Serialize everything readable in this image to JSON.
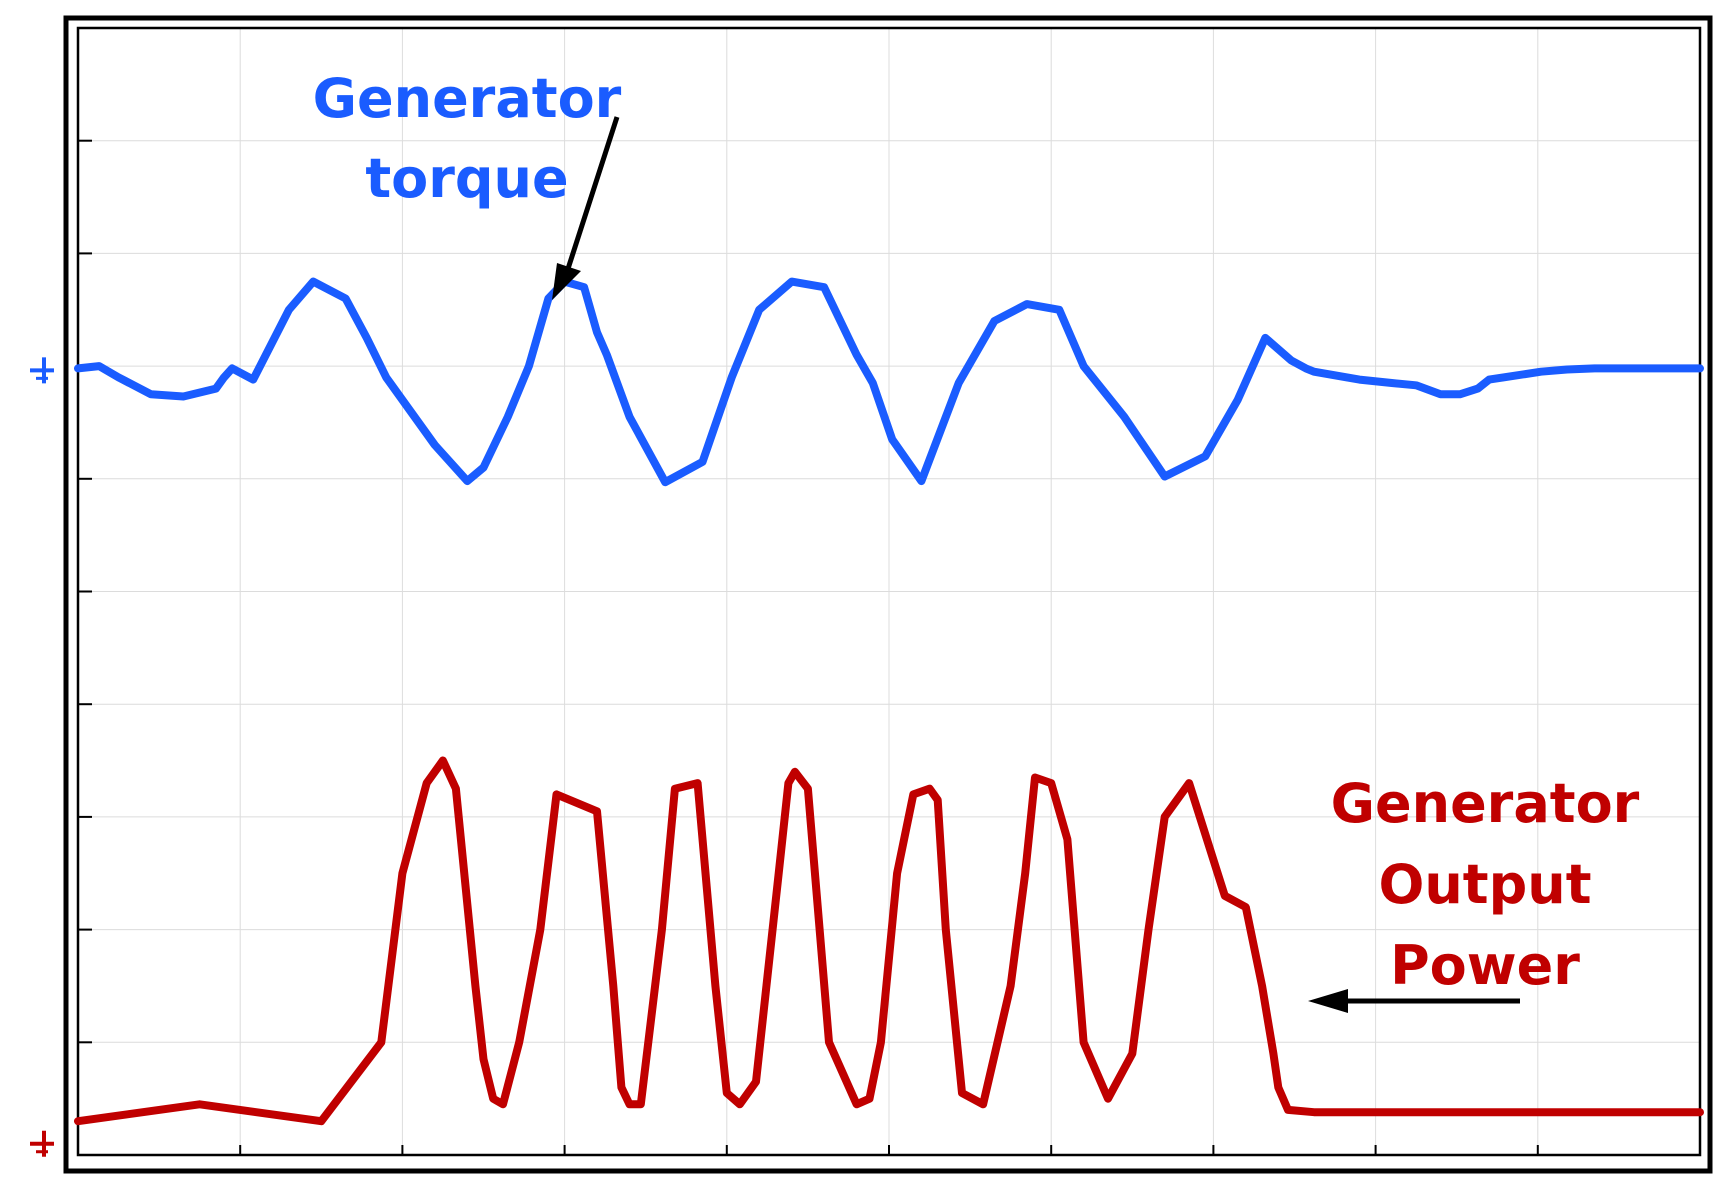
{
  "chart_data": {
    "type": "line",
    "title": "",
    "xlabel": "",
    "ylabel": "",
    "xlim": [
      0,
      10
    ],
    "ylim": [
      0,
      10
    ],
    "grid": true,
    "x_tick_count": 11,
    "y_tick_count": 11,
    "series": [
      {
        "name": "Generator torque",
        "color": "#1a5cff",
        "label_lines": [
          "Generator",
          "torque"
        ],
        "x": [
          0,
          0.13,
          0.25,
          0.45,
          0.65,
          0.85,
          0.9,
          0.95,
          1.08,
          1.3,
          1.45,
          1.65,
          1.78,
          1.9,
          2.2,
          2.4,
          2.5,
          2.65,
          2.78,
          2.9,
          3.0,
          3.12,
          3.2,
          3.26,
          3.4,
          3.62,
          3.85,
          4.03,
          4.2,
          4.4,
          4.6,
          4.8,
          4.9,
          5.02,
          5.2,
          5.43,
          5.65,
          5.85,
          6.05,
          6.2,
          6.45,
          6.7,
          6.95,
          7.15,
          7.32,
          7.48,
          7.57,
          7.62,
          7.9,
          8.1,
          8.25,
          8.4,
          8.52,
          8.63,
          8.7,
          9.02,
          9.18,
          9.35,
          9.55,
          9.65,
          9.8,
          9.9,
          10.0
        ],
        "y": [
          6.98,
          7.0,
          6.9,
          6.75,
          6.73,
          6.8,
          6.9,
          6.98,
          6.88,
          7.5,
          7.75,
          7.6,
          7.25,
          6.9,
          6.3,
          5.98,
          6.1,
          6.55,
          7.0,
          7.6,
          7.75,
          7.7,
          7.3,
          7.1,
          6.55,
          5.97,
          6.15,
          6.9,
          7.5,
          7.75,
          7.7,
          7.1,
          6.85,
          6.35,
          5.98,
          6.85,
          7.4,
          7.55,
          7.5,
          7.0,
          6.55,
          6.02,
          6.2,
          6.7,
          7.25,
          7.05,
          6.98,
          6.95,
          6.88,
          6.85,
          6.83,
          6.75,
          6.75,
          6.8,
          6.88,
          6.95,
          6.97,
          6.98,
          6.98,
          6.98,
          6.98,
          6.98,
          6.98
        ]
      },
      {
        "name": "Generator Output Power",
        "color": "#c00000",
        "label_lines": [
          "Generator",
          "Output",
          "Power"
        ],
        "x": [
          0,
          0.75,
          1.5,
          1.87,
          2.0,
          2.15,
          2.25,
          2.33,
          2.45,
          2.5,
          2.56,
          2.62,
          2.72,
          2.85,
          2.95,
          3.2,
          3.3,
          3.35,
          3.4,
          3.47,
          3.6,
          3.68,
          3.82,
          3.93,
          4.0,
          4.08,
          4.18,
          4.32,
          4.38,
          4.42,
          4.5,
          4.63,
          4.8,
          4.88,
          4.95,
          5.05,
          5.15,
          5.25,
          5.3,
          5.35,
          5.45,
          5.58,
          5.75,
          5.84,
          5.9,
          6.0,
          6.1,
          6.2,
          6.35,
          6.5,
          6.6,
          6.7,
          6.85,
          7.07,
          7.2,
          7.3,
          7.37,
          7.4,
          7.46,
          7.62,
          7.75,
          7.85,
          7.92,
          8.0,
          8.1,
          8.25,
          8.35,
          8.5,
          9.0,
          10.0
        ],
        "y": [
          0.3,
          0.45,
          0.3,
          1.0,
          2.5,
          3.3,
          3.5,
          3.25,
          1.5,
          0.85,
          0.5,
          0.45,
          1.0,
          2.0,
          3.2,
          3.05,
          1.5,
          0.6,
          0.45,
          0.45,
          2.0,
          3.25,
          3.3,
          1.5,
          0.55,
          0.45,
          0.65,
          2.5,
          3.3,
          3.4,
          3.25,
          1.0,
          0.45,
          0.5,
          1.0,
          2.5,
          3.2,
          3.25,
          3.15,
          2.0,
          0.55,
          0.45,
          1.5,
          2.5,
          3.35,
          3.3,
          2.8,
          1.0,
          0.5,
          0.9,
          2.0,
          3.0,
          3.3,
          2.3,
          2.2,
          1.5,
          0.9,
          0.6,
          0.4,
          0.38,
          0.38,
          0.38,
          0.38,
          0.38,
          0.38,
          0.38,
          0.38,
          0.38,
          0.38,
          0.38
        ]
      }
    ]
  }
}
